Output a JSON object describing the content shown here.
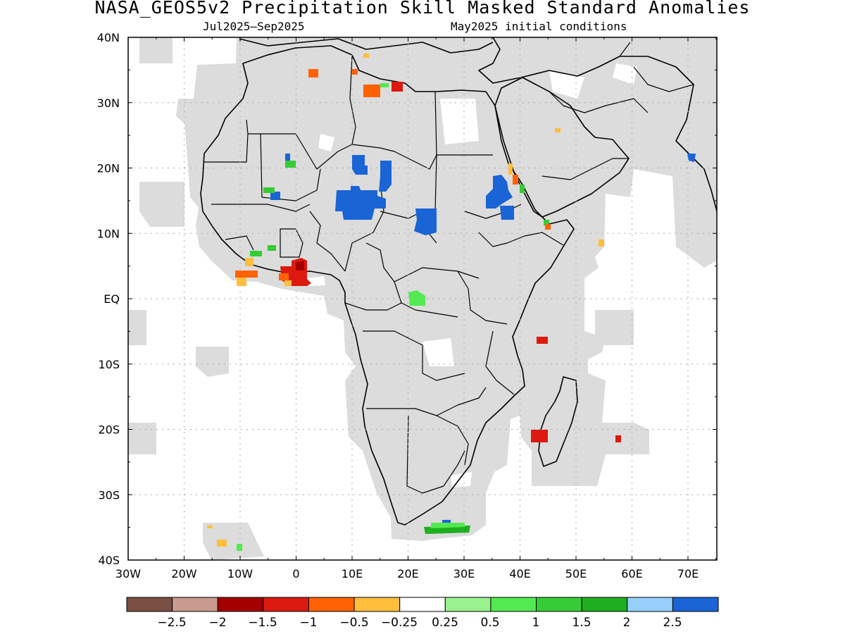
{
  "header": {
    "title": "NASA_GEOS5v2 Precipitation Skill Masked Standard Anomalies",
    "period": "Jul2025–Sep2025",
    "init": "May2025 initial conditions"
  },
  "axes": {
    "lon_labels": [
      "30W",
      "20W",
      "10W",
      "0",
      "10E",
      "20E",
      "30E",
      "40E",
      "50E",
      "60E",
      "70E"
    ],
    "lat_labels": [
      "40N",
      "30N",
      "20N",
      "10N",
      "EQ",
      "10S",
      "20S",
      "30S",
      "40S"
    ]
  },
  "colorbar": {
    "colors": [
      "#7a4e42",
      "#c99a8e",
      "#a50000",
      "#dc1a10",
      "#ff6205",
      "#ffbe3c",
      "#ffffff",
      "#9af28f",
      "#52ea50",
      "#36cc35",
      "#1fae20",
      "#96d0fa",
      "#1a64d6"
    ],
    "labels": [
      "−2.5",
      "−2",
      "−1.5",
      "−1",
      "−0.5",
      "−0.25",
      "0.25",
      "0.5",
      "1",
      "1.5",
      "2",
      "2.5"
    ]
  },
  "colors": {
    "mask": "#dcdcdc",
    "grid": "#aaaaaa"
  }
}
